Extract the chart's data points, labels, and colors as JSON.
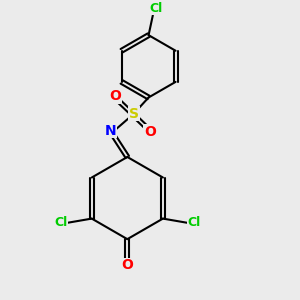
{
  "background_color": "#ebebeb",
  "atom_colors": {
    "Cl": "#00cc00",
    "O": "#ff0000",
    "N": "#0000ff",
    "S": "#cccc00"
  },
  "bond_color": "#000000",
  "figsize": [
    3.0,
    3.0
  ],
  "dpi": 100
}
